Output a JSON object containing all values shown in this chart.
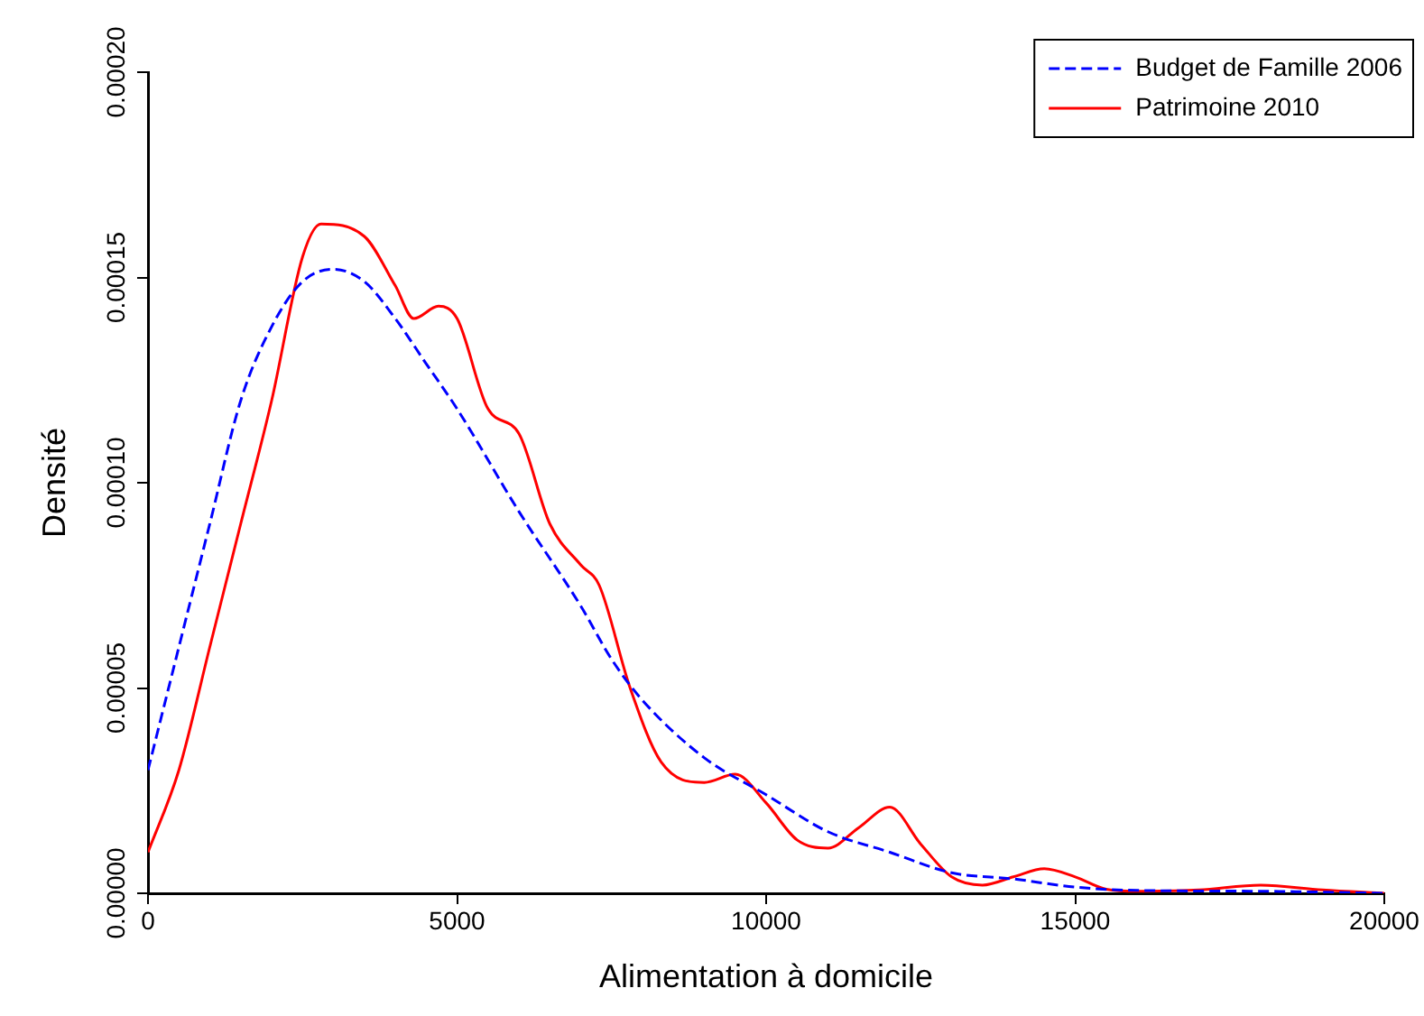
{
  "chart_data": {
    "type": "line",
    "xlabel": "Alimentation à domicile",
    "ylabel": "Densité",
    "xlim": [
      0,
      20000
    ],
    "xticks": [
      0,
      5000,
      10000,
      15000,
      20000
    ],
    "ylim": [
      0,
      0.0002
    ],
    "yticks": [
      {
        "value": 0,
        "label": "0.00000"
      },
      {
        "value": 5e-05,
        "label": "0.00005"
      },
      {
        "value": 0.0001,
        "label": "0.00010"
      },
      {
        "value": 0.00015,
        "label": "0.00015"
      },
      {
        "value": 0.0002,
        "label": "0.00020"
      }
    ],
    "grid": false,
    "legend": "top right",
    "marker": "none",
    "series": [
      {
        "name": "Budget de Famille 2006",
        "color": "#0000ff",
        "line_style": "dashed",
        "x": [
          0,
          500,
          1000,
          1500,
          2000,
          2500,
          3000,
          3500,
          4000,
          4500,
          5000,
          6000,
          7000,
          7500,
          8000,
          9000,
          10000,
          11000,
          12000,
          13000,
          14000,
          15000,
          16000,
          18000,
          20000
        ],
        "values": [
          3e-05,
          6e-05,
          9e-05,
          0.00012,
          0.000138,
          0.000149,
          0.000152,
          0.000149,
          0.00014,
          0.000129,
          0.000118,
          9.3e-05,
          7e-05,
          5.7e-05,
          4.7e-05,
          3.3e-05,
          2.4e-05,
          1.5e-05,
          1e-05,
          5e-06,
          3.5e-06,
          1.5e-06,
          7e-07,
          5e-07,
          0
        ]
      },
      {
        "name": "Patrimoine 2010",
        "color": "#ff0000",
        "line_style": "solid",
        "x": [
          0,
          500,
          1000,
          1500,
          2000,
          2500,
          2800,
          3500,
          4000,
          4300,
          4700,
          5000,
          5500,
          6000,
          6500,
          7000,
          7300,
          7800,
          8300,
          9000,
          9500,
          10000,
          10500,
          11000,
          11500,
          12000,
          12500,
          13000,
          13500,
          14000,
          14500,
          15000,
          15500,
          16000,
          17000,
          18000,
          19000,
          20000
        ],
        "values": [
          1e-05,
          3e-05,
          6e-05,
          9e-05,
          0.00012,
          0.000155,
          0.000163,
          0.00016,
          0.000148,
          0.00014,
          0.000143,
          0.00014,
          0.000118,
          0.000112,
          9e-05,
          8e-05,
          7.5e-05,
          5e-05,
          3.2e-05,
          2.7e-05,
          2.9e-05,
          2.2e-05,
          1.3e-05,
          1.1e-05,
          1.6e-05,
          2.1e-05,
          1.2e-05,
          4e-06,
          2e-06,
          4e-06,
          6e-06,
          4e-06,
          1e-06,
          5e-07,
          8e-07,
          2e-06,
          8e-07,
          0
        ]
      }
    ]
  }
}
